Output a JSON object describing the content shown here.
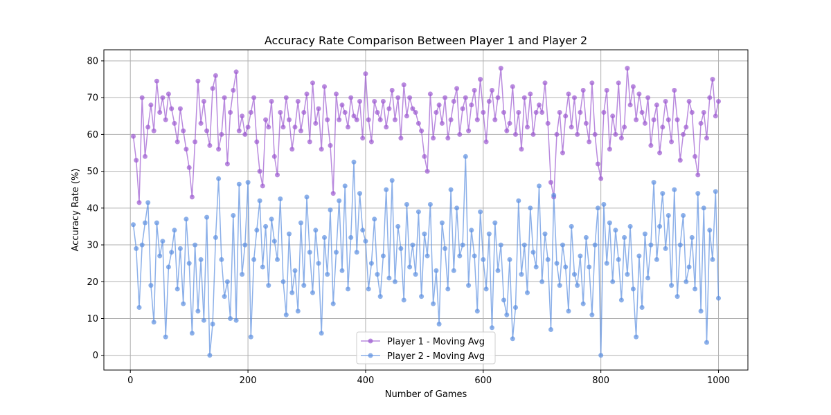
{
  "chart_data": {
    "type": "line",
    "title": "Accuracy Rate Comparison Between Player 1 and Player 2",
    "xlabel": "Number of Games",
    "ylabel": "Accuracy Rate (%)",
    "xlim": [
      -45,
      1050
    ],
    "ylim": [
      -4,
      83
    ],
    "xticks": [
      0,
      200,
      400,
      600,
      800,
      1000
    ],
    "yticks": [
      0,
      10,
      20,
      30,
      40,
      50,
      60,
      70,
      80
    ],
    "grid": true,
    "legend_position": "lower-center",
    "series": [
      {
        "name": "Player 1 - Moving Avg",
        "color": "#9b59d0",
        "x": [
          5,
          10,
          15,
          20,
          25,
          30,
          35,
          40,
          45,
          50,
          55,
          60,
          65,
          70,
          75,
          80,
          85,
          90,
          95,
          100,
          105,
          110,
          115,
          120,
          125,
          130,
          135,
          140,
          145,
          150,
          155,
          160,
          165,
          170,
          175,
          180,
          185,
          190,
          195,
          200,
          205,
          210,
          215,
          220,
          225,
          230,
          235,
          240,
          245,
          250,
          255,
          260,
          265,
          270,
          275,
          280,
          285,
          290,
          295,
          300,
          305,
          310,
          315,
          320,
          325,
          330,
          335,
          340,
          345,
          350,
          355,
          360,
          365,
          370,
          375,
          380,
          385,
          390,
          395,
          400,
          405,
          410,
          415,
          420,
          425,
          430,
          435,
          440,
          445,
          450,
          455,
          460,
          465,
          470,
          475,
          480,
          485,
          490,
          495,
          500,
          505,
          510,
          515,
          520,
          525,
          530,
          535,
          540,
          545,
          550,
          555,
          560,
          565,
          570,
          575,
          580,
          585,
          590,
          595,
          600,
          605,
          610,
          615,
          620,
          625,
          630,
          635,
          640,
          645,
          650,
          655,
          660,
          665,
          670,
          675,
          680,
          685,
          690,
          695,
          700,
          705,
          710,
          715,
          720,
          725,
          730,
          735,
          740,
          745,
          750,
          755,
          760,
          765,
          770,
          775,
          780,
          785,
          790,
          795,
          800,
          805,
          810,
          815,
          820,
          825,
          830,
          835,
          840,
          845,
          850,
          855,
          860,
          865,
          870,
          875,
          880,
          885,
          890,
          895,
          900,
          905,
          910,
          915,
          920,
          925,
          930,
          935,
          940,
          945,
          950,
          955,
          960,
          965,
          970,
          975,
          980,
          985,
          990,
          995,
          1000
        ],
        "values": [
          59.5,
          53,
          41.5,
          70,
          54,
          62,
          68,
          61,
          74.5,
          66,
          70,
          64,
          71,
          67,
          63,
          58,
          67,
          61,
          56,
          51,
          43,
          58,
          74.5,
          63,
          69,
          61,
          57,
          72.5,
          76,
          56,
          60,
          70,
          52,
          66,
          72,
          77,
          61,
          65,
          60,
          62,
          66,
          70,
          58,
          50,
          46,
          64,
          62,
          69,
          54,
          49,
          66,
          62,
          70,
          64,
          56,
          62,
          69,
          61,
          66,
          71,
          58,
          74,
          63,
          67,
          56,
          73,
          64,
          57,
          44,
          71,
          64,
          68,
          66,
          62,
          70,
          65,
          64,
          69,
          59,
          76.5,
          64,
          58,
          69,
          66,
          64,
          69,
          62,
          67,
          72,
          64,
          70,
          59,
          73.5,
          65,
          70,
          67,
          66,
          63,
          61,
          54,
          50,
          71,
          59,
          66,
          68,
          63,
          70,
          59,
          64,
          69,
          72.5,
          60,
          67,
          70,
          61,
          68,
          72,
          64,
          75,
          66,
          58,
          69,
          72,
          64,
          70,
          78,
          66,
          61,
          63,
          73,
          60,
          66,
          56,
          70,
          62,
          71,
          60,
          66,
          68,
          66,
          74,
          63,
          47,
          43,
          60,
          66,
          55,
          65,
          71,
          62,
          70,
          60,
          66,
          72,
          63,
          58,
          74,
          60,
          52,
          48,
          66,
          72,
          56,
          65,
          60,
          74,
          59,
          62,
          78,
          68,
          73,
          64,
          71,
          66,
          63,
          70,
          57,
          64,
          68,
          55,
          62,
          69,
          64,
          58,
          72,
          64,
          53,
          60,
          62,
          69,
          66,
          54,
          49,
          63,
          66,
          59,
          70,
          75,
          65,
          69
        ]
      },
      {
        "name": "Player 2 - Moving Avg",
        "color": "#5b8ee0",
        "x": [
          5,
          10,
          15,
          20,
          25,
          30,
          35,
          40,
          45,
          50,
          55,
          60,
          65,
          70,
          75,
          80,
          85,
          90,
          95,
          100,
          105,
          110,
          115,
          120,
          125,
          130,
          135,
          140,
          145,
          150,
          155,
          160,
          165,
          170,
          175,
          180,
          185,
          190,
          195,
          200,
          205,
          210,
          215,
          220,
          225,
          230,
          235,
          240,
          245,
          250,
          255,
          260,
          265,
          270,
          275,
          280,
          285,
          290,
          295,
          300,
          305,
          310,
          315,
          320,
          325,
          330,
          335,
          340,
          345,
          350,
          355,
          360,
          365,
          370,
          375,
          380,
          385,
          390,
          395,
          400,
          405,
          410,
          415,
          420,
          425,
          430,
          435,
          440,
          445,
          450,
          455,
          460,
          465,
          470,
          475,
          480,
          485,
          490,
          495,
          500,
          505,
          510,
          515,
          520,
          525,
          530,
          535,
          540,
          545,
          550,
          555,
          560,
          565,
          570,
          575,
          580,
          585,
          590,
          595,
          600,
          605,
          610,
          615,
          620,
          625,
          630,
          635,
          640,
          645,
          650,
          655,
          660,
          665,
          670,
          675,
          680,
          685,
          690,
          695,
          700,
          705,
          710,
          715,
          720,
          725,
          730,
          735,
          740,
          745,
          750,
          755,
          760,
          765,
          770,
          775,
          780,
          785,
          790,
          795,
          800,
          805,
          810,
          815,
          820,
          825,
          830,
          835,
          840,
          845,
          850,
          855,
          860,
          865,
          870,
          875,
          880,
          885,
          890,
          895,
          900,
          905,
          910,
          915,
          920,
          925,
          930,
          935,
          940,
          945,
          950,
          955,
          960,
          965,
          970,
          975,
          980,
          985,
          990,
          995,
          1000
        ],
        "values": [
          35.5,
          29,
          13,
          30,
          36,
          41.5,
          19,
          9,
          36,
          27,
          31,
          5,
          24,
          28,
          34,
          18,
          29,
          14,
          37,
          25,
          6,
          30,
          12,
          26,
          9.5,
          37.5,
          0,
          8.5,
          32,
          48,
          26,
          16,
          20,
          10,
          38,
          9.5,
          46.5,
          22,
          30,
          47,
          5,
          26,
          34,
          42,
          24,
          35,
          19,
          37,
          31,
          26,
          42.5,
          20,
          11,
          33,
          17,
          23,
          12,
          36,
          19,
          43,
          28,
          17,
          34,
          25,
          6,
          32,
          22,
          39.5,
          14,
          28,
          42,
          23,
          46,
          18,
          32,
          52.5,
          28,
          44,
          34,
          31,
          18,
          25,
          37,
          22,
          16,
          27,
          45,
          21,
          47.5,
          20,
          35,
          29,
          15,
          41,
          24,
          30,
          22,
          39,
          16,
          33,
          27,
          41,
          14,
          23,
          8.5,
          36,
          29,
          18,
          45,
          23,
          40,
          27,
          30,
          54,
          19,
          34,
          27,
          12,
          39,
          26,
          18,
          33,
          7.5,
          36,
          23,
          30,
          15,
          11,
          26,
          4.5,
          13,
          42,
          22,
          30,
          17,
          40,
          28,
          24,
          46,
          20,
          33,
          26,
          7,
          43.5,
          25,
          19,
          30,
          24,
          12,
          35,
          22,
          19,
          27,
          14,
          32,
          24,
          11,
          30,
          40,
          0,
          41,
          25,
          36,
          20,
          34,
          26,
          15,
          32,
          22,
          35,
          18,
          5,
          27,
          13,
          33,
          21,
          30,
          47,
          26,
          35,
          44,
          29,
          38,
          19,
          45,
          16,
          30,
          38,
          20,
          24,
          32,
          18,
          44,
          12,
          40,
          3.5,
          34,
          26,
          44.5,
          15.5
        ]
      }
    ]
  }
}
